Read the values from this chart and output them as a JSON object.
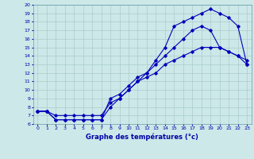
{
  "title": "Graphe des températures (°c)",
  "bg_color": "#cce8e8",
  "grid_color": "#aacccc",
  "line_color": "#0000bb",
  "xlim": [
    -0.5,
    23.5
  ],
  "ylim": [
    6,
    20
  ],
  "xticks": [
    0,
    1,
    2,
    3,
    4,
    5,
    6,
    7,
    8,
    9,
    10,
    11,
    12,
    13,
    14,
    15,
    16,
    17,
    18,
    19,
    20,
    21,
    22,
    23
  ],
  "yticks": [
    6,
    7,
    8,
    9,
    10,
    11,
    12,
    13,
    14,
    15,
    16,
    17,
    18,
    19,
    20
  ],
  "series1_x": [
    0,
    1,
    2,
    3,
    4,
    5,
    6,
    7,
    8,
    9,
    10,
    11,
    12,
    13,
    14,
    15,
    16,
    17,
    18,
    19,
    20,
    21,
    22,
    23
  ],
  "series1_y": [
    7.5,
    7.5,
    6.5,
    6.5,
    6.5,
    6.5,
    6.5,
    6.5,
    9.0,
    9.5,
    10.5,
    11.5,
    12.0,
    13.5,
    15.0,
    17.5,
    18.0,
    18.5,
    19.0,
    19.5,
    19.0,
    18.5,
    17.5,
    13.0
  ],
  "series2_x": [
    0,
    1,
    2,
    3,
    4,
    5,
    6,
    7,
    8,
    9,
    10,
    11,
    12,
    13,
    14,
    15,
    16,
    17,
    18,
    19,
    20,
    21,
    22,
    23
  ],
  "series2_y": [
    7.5,
    7.5,
    6.5,
    6.5,
    6.5,
    6.5,
    6.5,
    6.5,
    8.0,
    9.0,
    10.0,
    11.0,
    12.0,
    13.0,
    14.0,
    15.0,
    16.0,
    17.0,
    17.5,
    17.0,
    15.0,
    14.5,
    14.0,
    13.0
  ],
  "series3_x": [
    0,
    1,
    2,
    3,
    4,
    5,
    6,
    7,
    8,
    9,
    10,
    11,
    12,
    13,
    14,
    15,
    16,
    17,
    18,
    19,
    20,
    21,
    22,
    23
  ],
  "series3_y": [
    7.5,
    7.5,
    7.0,
    7.0,
    7.0,
    7.0,
    7.0,
    7.0,
    8.5,
    9.0,
    10.0,
    11.0,
    11.5,
    12.0,
    13.0,
    13.5,
    14.0,
    14.5,
    15.0,
    15.0,
    15.0,
    14.5,
    14.0,
    13.5
  ]
}
